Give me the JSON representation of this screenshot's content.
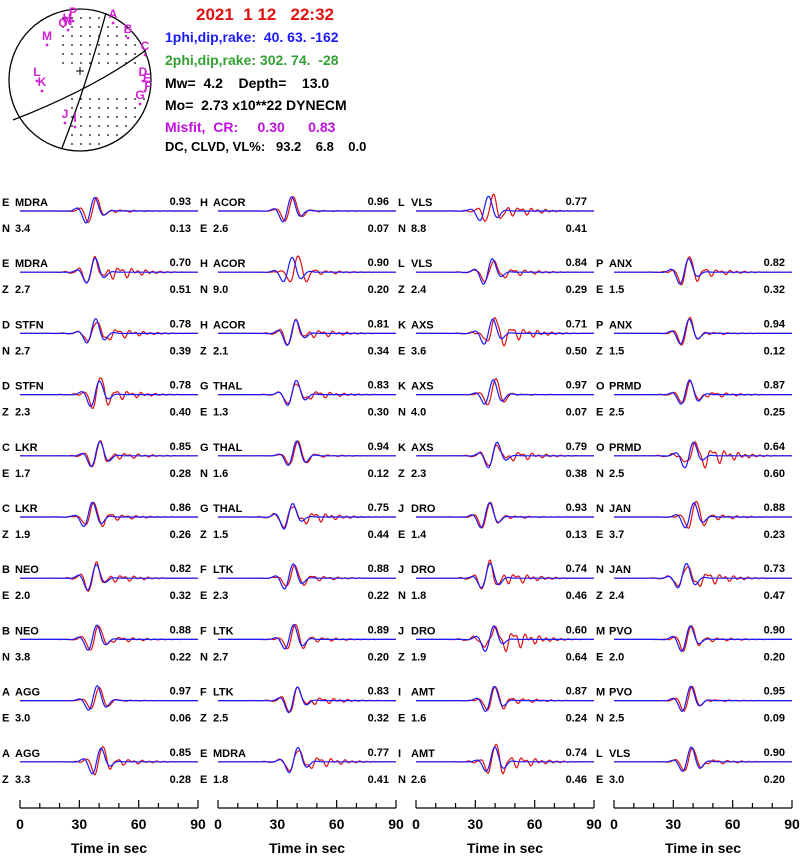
{
  "header": {
    "date": "2021  1 12   22:32",
    "plane1": "1phi,dip,rake:  40. 63. -162",
    "plane2": "2phi,dip,rake: 302. 74.  -28",
    "mw_depth": "Mw=  4.2    Depth=    13.0",
    "moment": "Mo=  2.73 x10**22 DYNECM",
    "misfit": "Misfit,  CR:     0.30      0.83",
    "dc_clvd": "DC, CLVD, VL%:   93.2    6.8    0.0"
  },
  "beachball": {
    "station_letters": [
      "A",
      "B",
      "C",
      "D",
      "E",
      "F",
      "G",
      "H",
      "I",
      "J",
      "K",
      "L",
      "M",
      "N",
      "O",
      "P"
    ]
  },
  "colors": {
    "observed": "#e01010",
    "synthetic": "#1a1aff",
    "title": "#e01010",
    "plane1": "#1a1aff",
    "plane2": "#33a033",
    "misfit": "#c010e0"
  },
  "chart_data": {
    "type": "line",
    "xlabel": "Time  in sec",
    "xlim": [
      0,
      90
    ],
    "xticks": [
      0,
      30,
      60,
      90
    ],
    "series": [
      {
        "legend": "observed",
        "color": "#e01010"
      },
      {
        "legend": "synthetic",
        "color": "#1a1aff"
      }
    ],
    "traces": [
      {
        "col": 0,
        "row": 0,
        "letter": "E",
        "station": "MDRA",
        "comp": "N",
        "shift": "3.4",
        "corr": "0.93",
        "vr": "0.13"
      },
      {
        "col": 0,
        "row": 1,
        "letter": "E",
        "station": "MDRA",
        "comp": "Z",
        "shift": "2.7",
        "corr": "0.70",
        "vr": "0.51"
      },
      {
        "col": 0,
        "row": 2,
        "letter": "D",
        "station": "STFN",
        "comp": "N",
        "shift": "2.7",
        "corr": "0.78",
        "vr": "0.39"
      },
      {
        "col": 0,
        "row": 3,
        "letter": "D",
        "station": "STFN",
        "comp": "Z",
        "shift": "2.3",
        "corr": "0.78",
        "vr": "0.40"
      },
      {
        "col": 0,
        "row": 4,
        "letter": "C",
        "station": "LKR",
        "comp": "E",
        "shift": "1.7",
        "corr": "0.85",
        "vr": "0.28"
      },
      {
        "col": 0,
        "row": 5,
        "letter": "C",
        "station": "LKR",
        "comp": "Z",
        "shift": "1.9",
        "corr": "0.86",
        "vr": "0.26"
      },
      {
        "col": 0,
        "row": 6,
        "letter": "B",
        "station": "NEO",
        "comp": "E",
        "shift": "2.0",
        "corr": "0.82",
        "vr": "0.32"
      },
      {
        "col": 0,
        "row": 7,
        "letter": "B",
        "station": "NEO",
        "comp": "N",
        "shift": "3.8",
        "corr": "0.88",
        "vr": "0.22"
      },
      {
        "col": 0,
        "row": 8,
        "letter": "A",
        "station": "AGG",
        "comp": "E",
        "shift": "3.0",
        "corr": "0.97",
        "vr": "0.06"
      },
      {
        "col": 0,
        "row": 9,
        "letter": "A",
        "station": "AGG",
        "comp": "Z",
        "shift": "3.3",
        "corr": "0.85",
        "vr": "0.28"
      },
      {
        "col": 1,
        "row": 0,
        "letter": "H",
        "station": "ACOR",
        "comp": "E",
        "shift": "2.6",
        "corr": "0.96",
        "vr": "0.07"
      },
      {
        "col": 1,
        "row": 1,
        "letter": "H",
        "station": "ACOR",
        "comp": "N",
        "shift": "9.0",
        "corr": "0.90",
        "vr": "0.20"
      },
      {
        "col": 1,
        "row": 2,
        "letter": "H",
        "station": "ACOR",
        "comp": "Z",
        "shift": "2.1",
        "corr": "0.81",
        "vr": "0.34"
      },
      {
        "col": 1,
        "row": 3,
        "letter": "G",
        "station": "THAL",
        "comp": "E",
        "shift": "1.3",
        "corr": "0.83",
        "vr": "0.30"
      },
      {
        "col": 1,
        "row": 4,
        "letter": "G",
        "station": "THAL",
        "comp": "N",
        "shift": "1.6",
        "corr": "0.94",
        "vr": "0.12"
      },
      {
        "col": 1,
        "row": 5,
        "letter": "G",
        "station": "THAL",
        "comp": "Z",
        "shift": "1.5",
        "corr": "0.75",
        "vr": "0.44"
      },
      {
        "col": 1,
        "row": 6,
        "letter": "F",
        "station": "LTK",
        "comp": "E",
        "shift": "2.3",
        "corr": "0.88",
        "vr": "0.22"
      },
      {
        "col": 1,
        "row": 7,
        "letter": "F",
        "station": "LTK",
        "comp": "N",
        "shift": "2.7",
        "corr": "0.89",
        "vr": "0.20"
      },
      {
        "col": 1,
        "row": 8,
        "letter": "F",
        "station": "LTK",
        "comp": "Z",
        "shift": "2.5",
        "corr": "0.83",
        "vr": "0.32"
      },
      {
        "col": 1,
        "row": 9,
        "letter": "E",
        "station": "MDRA",
        "comp": "E",
        "shift": "1.8",
        "corr": "0.77",
        "vr": "0.41"
      },
      {
        "col": 2,
        "row": 0,
        "letter": "L",
        "station": "VLS",
        "comp": "N",
        "shift": "8.8",
        "corr": "0.77",
        "vr": "0.41"
      },
      {
        "col": 2,
        "row": 1,
        "letter": "L",
        "station": "VLS",
        "comp": "Z",
        "shift": "2.4",
        "corr": "0.84",
        "vr": "0.29"
      },
      {
        "col": 2,
        "row": 2,
        "letter": "K",
        "station": "AXS",
        "comp": "E",
        "shift": "3.6",
        "corr": "0.71",
        "vr": "0.50"
      },
      {
        "col": 2,
        "row": 3,
        "letter": "K",
        "station": "AXS",
        "comp": "N",
        "shift": "4.0",
        "corr": "0.97",
        "vr": "0.07"
      },
      {
        "col": 2,
        "row": 4,
        "letter": "K",
        "station": "AXS",
        "comp": "Z",
        "shift": "2.3",
        "corr": "0.79",
        "vr": "0.38"
      },
      {
        "col": 2,
        "row": 5,
        "letter": "J",
        "station": "DRO",
        "comp": "E",
        "shift": "1.4",
        "corr": "0.93",
        "vr": "0.13"
      },
      {
        "col": 2,
        "row": 6,
        "letter": "J",
        "station": "DRO",
        "comp": "N",
        "shift": "1.8",
        "corr": "0.74",
        "vr": "0.46"
      },
      {
        "col": 2,
        "row": 7,
        "letter": "J",
        "station": "DRO",
        "comp": "Z",
        "shift": "1.9",
        "corr": "0.60",
        "vr": "0.64"
      },
      {
        "col": 2,
        "row": 8,
        "letter": "I",
        "station": "AMT",
        "comp": "E",
        "shift": "1.6",
        "corr": "0.87",
        "vr": "0.24"
      },
      {
        "col": 2,
        "row": 9,
        "letter": "I",
        "station": "AMT",
        "comp": "N",
        "shift": "2.6",
        "corr": "0.74",
        "vr": "0.46"
      },
      {
        "col": 3,
        "row": 1,
        "letter": "P",
        "station": "ANX",
        "comp": "E",
        "shift": "1.5",
        "corr": "0.82",
        "vr": "0.32"
      },
      {
        "col": 3,
        "row": 2,
        "letter": "P",
        "station": "ANX",
        "comp": "Z",
        "shift": "1.5",
        "corr": "0.94",
        "vr": "0.12"
      },
      {
        "col": 3,
        "row": 3,
        "letter": "O",
        "station": "PRMD",
        "comp": "E",
        "shift": "2.5",
        "corr": "0.87",
        "vr": "0.25"
      },
      {
        "col": 3,
        "row": 4,
        "letter": "O",
        "station": "PRMD",
        "comp": "N",
        "shift": "2.5",
        "corr": "0.64",
        "vr": "0.60"
      },
      {
        "col": 3,
        "row": 5,
        "letter": "N",
        "station": "JAN",
        "comp": "E",
        "shift": "3.7",
        "corr": "0.88",
        "vr": "0.23"
      },
      {
        "col": 3,
        "row": 6,
        "letter": "N",
        "station": "JAN",
        "comp": "Z",
        "shift": "2.4",
        "corr": "0.73",
        "vr": "0.47"
      },
      {
        "col": 3,
        "row": 7,
        "letter": "M",
        "station": "PVO",
        "comp": "E",
        "shift": "2.0",
        "corr": "0.90",
        "vr": "0.20"
      },
      {
        "col": 3,
        "row": 8,
        "letter": "M",
        "station": "PVO",
        "comp": "N",
        "shift": "2.5",
        "corr": "0.95",
        "vr": "0.09"
      },
      {
        "col": 3,
        "row": 9,
        "letter": "L",
        "station": "VLS",
        "comp": "E",
        "shift": "3.0",
        "corr": "0.90",
        "vr": "0.20"
      }
    ]
  }
}
